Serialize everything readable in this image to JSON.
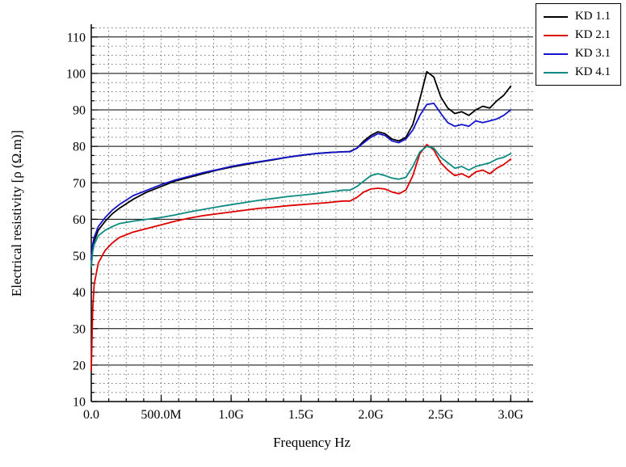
{
  "chart_data": {
    "type": "line",
    "title": "",
    "xlabel": "Frequency Hz",
    "ylabel": "Electrical resistivity [ρ (Ω.m)]",
    "x_units": "GHz",
    "xlim": [
      0,
      3.16
    ],
    "ylim": [
      10,
      113.5
    ],
    "x_tick_values": [
      0,
      0.5,
      1.0,
      1.5,
      2.0,
      2.5,
      3.0
    ],
    "x_tick_labels": [
      "0.0",
      "500.0M",
      "1.0G",
      "1.5G",
      "2.0G",
      "2.5G",
      "3.0G"
    ],
    "y_tick_values": [
      10,
      20,
      30,
      40,
      50,
      60,
      70,
      80,
      90,
      100,
      110
    ],
    "x_minor_step": 0.125,
    "y_minor_step": 2.5,
    "grid": {
      "major_horizontal": "solid",
      "minor": "dotted"
    },
    "legend_position": "top-right",
    "x": [
      0,
      0.01,
      0.02,
      0.05,
      0.1,
      0.15,
      0.2,
      0.3,
      0.4,
      0.5,
      0.6,
      0.7,
      0.8,
      0.9,
      1.0,
      1.1,
      1.2,
      1.3,
      1.4,
      1.5,
      1.6,
      1.7,
      1.8,
      1.85,
      1.9,
      1.95,
      2.0,
      2.05,
      2.1,
      2.15,
      2.2,
      2.25,
      2.3,
      2.35,
      2.4,
      2.45,
      2.5,
      2.55,
      2.6,
      2.65,
      2.7,
      2.75,
      2.8,
      2.85,
      2.9,
      2.95,
      3.0
    ],
    "series": [
      {
        "name": "KD 1.1",
        "color": "#000000",
        "values": [
          47,
          52,
          54,
          57,
          59.5,
          61.5,
          63,
          65.5,
          67.5,
          69,
          70.5,
          71.5,
          72.5,
          73.5,
          74.3,
          75,
          75.7,
          76.3,
          77,
          77.5,
          78,
          78.3,
          78.5,
          78.6,
          79.5,
          81.5,
          83,
          84,
          83.5,
          82,
          81.5,
          82.5,
          86,
          93,
          100.5,
          99,
          93.5,
          90.5,
          89,
          89.5,
          88.5,
          90,
          91,
          90.5,
          92.5,
          94,
          96.5
        ]
      },
      {
        "name": "KD 2.1",
        "color": "#dd0000",
        "values": [
          18.5,
          35,
          42,
          48,
          51.5,
          53.5,
          55,
          56.5,
          57.5,
          58.5,
          59.5,
          60.3,
          61,
          61.5,
          62,
          62.5,
          63,
          63.3,
          63.7,
          64,
          64.3,
          64.6,
          65,
          65,
          66,
          67.5,
          68.3,
          68.5,
          68.3,
          67.5,
          67,
          68,
          72,
          78,
          80.5,
          79,
          75.5,
          73.5,
          72,
          72.5,
          71.5,
          73,
          73.5,
          72.5,
          74,
          75,
          76.5
        ]
      },
      {
        "name": "KD 3.1",
        "color": "#1414cc",
        "values": [
          49,
          53,
          55,
          58,
          60.5,
          62.5,
          64,
          66.5,
          68,
          69.5,
          70.8,
          71.8,
          72.8,
          73.6,
          74.5,
          75.2,
          75.8,
          76.4,
          77,
          77.6,
          78,
          78.3,
          78.5,
          78.5,
          79.5,
          81,
          82.5,
          83.5,
          83,
          81.5,
          81,
          82,
          84.5,
          88.5,
          91.5,
          91.8,
          89,
          86.5,
          85.5,
          86,
          85.5,
          87,
          86.5,
          87,
          87.5,
          88.5,
          90
        ]
      },
      {
        "name": "KD 4.1",
        "color": "#0d8a82",
        "values": [
          47,
          51,
          53,
          55.5,
          57,
          58,
          58.8,
          59.5,
          60,
          60.5,
          61.2,
          62,
          62.7,
          63.4,
          64,
          64.6,
          65.2,
          65.7,
          66.2,
          66.6,
          67,
          67.5,
          68,
          68,
          69,
          70.5,
          72,
          72.5,
          72,
          71.3,
          71,
          71.5,
          74.5,
          78.5,
          80,
          79.5,
          77,
          75.5,
          74,
          74.5,
          73.5,
          74.5,
          75,
          75.5,
          76.5,
          77,
          78
        ]
      }
    ]
  }
}
